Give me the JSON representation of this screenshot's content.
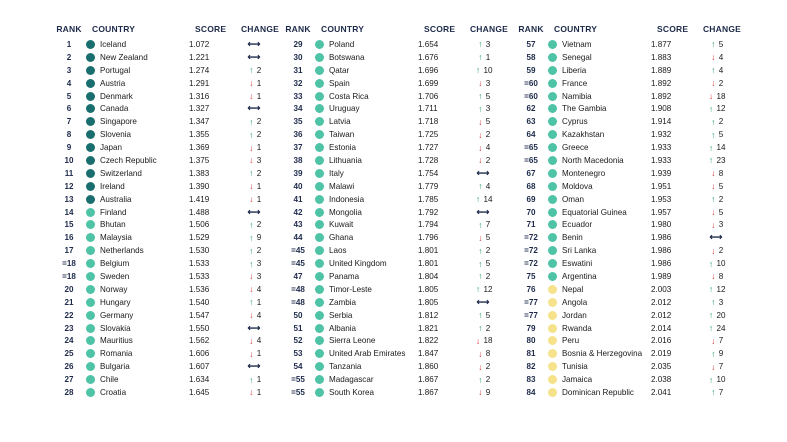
{
  "headers": {
    "rank": "RANK",
    "country": "COUNTRY",
    "score": "SCORE",
    "change": "CHANGE"
  },
  "colors": {
    "dark_teal": "#1a6e70",
    "mid_teal": "#4ec3a6",
    "light_yellow": "#f6e28a",
    "up": "#1c9a5a",
    "down": "#d6262b",
    "same": "#1d2a4a"
  },
  "rows": [
    {
      "rank": "1",
      "country": "Iceland",
      "score": "1.072",
      "dir": "same",
      "change": "",
      "dot": "dark"
    },
    {
      "rank": "2",
      "country": "New Zealand",
      "score": "1.221",
      "dir": "same",
      "change": "",
      "dot": "dark"
    },
    {
      "rank": "3",
      "country": "Portugal",
      "score": "1.274",
      "dir": "up",
      "change": "2",
      "dot": "dark"
    },
    {
      "rank": "4",
      "country": "Austria",
      "score": "1.291",
      "dir": "down",
      "change": "1",
      "dot": "dark"
    },
    {
      "rank": "5",
      "country": "Denmark",
      "score": "1.316",
      "dir": "down",
      "change": "1",
      "dot": "dark"
    },
    {
      "rank": "6",
      "country": "Canada",
      "score": "1.327",
      "dir": "same",
      "change": "",
      "dot": "dark"
    },
    {
      "rank": "7",
      "country": "Singapore",
      "score": "1.347",
      "dir": "up",
      "change": "2",
      "dot": "dark"
    },
    {
      "rank": "8",
      "country": "Slovenia",
      "score": "1.355",
      "dir": "up",
      "change": "2",
      "dot": "dark"
    },
    {
      "rank": "9",
      "country": "Japan",
      "score": "1.369",
      "dir": "down",
      "change": "1",
      "dot": "dark"
    },
    {
      "rank": "10",
      "country": "Czech Republic",
      "score": "1.375",
      "dir": "down",
      "change": "3",
      "dot": "dark"
    },
    {
      "rank": "11",
      "country": "Switzerland",
      "score": "1.383",
      "dir": "up",
      "change": "2",
      "dot": "dark"
    },
    {
      "rank": "12",
      "country": "Ireland",
      "score": "1.390",
      "dir": "down",
      "change": "1",
      "dot": "dark"
    },
    {
      "rank": "13",
      "country": "Australia",
      "score": "1.419",
      "dir": "down",
      "change": "1",
      "dot": "dark"
    },
    {
      "rank": "14",
      "country": "Finland",
      "score": "1.488",
      "dir": "same",
      "change": "",
      "dot": "mid"
    },
    {
      "rank": "15",
      "country": "Bhutan",
      "score": "1.506",
      "dir": "up",
      "change": "2",
      "dot": "mid"
    },
    {
      "rank": "16",
      "country": "Malaysia",
      "score": "1.529",
      "dir": "up",
      "change": "9",
      "dot": "mid"
    },
    {
      "rank": "17",
      "country": "Netherlands",
      "score": "1.530",
      "dir": "up",
      "change": "2",
      "dot": "mid"
    },
    {
      "rank": "=18",
      "country": "Belgium",
      "score": "1.533",
      "dir": "up",
      "change": "3",
      "dot": "mid"
    },
    {
      "rank": "=18",
      "country": "Sweden",
      "score": "1.533",
      "dir": "down",
      "change": "3",
      "dot": "mid"
    },
    {
      "rank": "20",
      "country": "Norway",
      "score": "1.536",
      "dir": "down",
      "change": "4",
      "dot": "mid"
    },
    {
      "rank": "21",
      "country": "Hungary",
      "score": "1.540",
      "dir": "up",
      "change": "1",
      "dot": "mid"
    },
    {
      "rank": "22",
      "country": "Germany",
      "score": "1.547",
      "dir": "down",
      "change": "4",
      "dot": "mid"
    },
    {
      "rank": "23",
      "country": "Slovakia",
      "score": "1.550",
      "dir": "same",
      "change": "",
      "dot": "mid"
    },
    {
      "rank": "24",
      "country": "Mauritius",
      "score": "1.562",
      "dir": "down",
      "change": "4",
      "dot": "mid"
    },
    {
      "rank": "25",
      "country": "Romania",
      "score": "1.606",
      "dir": "down",
      "change": "1",
      "dot": "mid"
    },
    {
      "rank": "26",
      "country": "Bulgaria",
      "score": "1.607",
      "dir": "same",
      "change": "",
      "dot": "mid"
    },
    {
      "rank": "27",
      "country": "Chile",
      "score": "1.634",
      "dir": "up",
      "change": "1",
      "dot": "mid"
    },
    {
      "rank": "28",
      "country": "Croatia",
      "score": "1.645",
      "dir": "down",
      "change": "1",
      "dot": "mid"
    },
    {
      "rank": "29",
      "country": "Poland",
      "score": "1.654",
      "dir": "up",
      "change": "3",
      "dot": "mid"
    },
    {
      "rank": "30",
      "country": "Botswana",
      "score": "1.676",
      "dir": "up",
      "change": "1",
      "dot": "mid"
    },
    {
      "rank": "31",
      "country": "Qatar",
      "score": "1.696",
      "dir": "up",
      "change": "10",
      "dot": "mid"
    },
    {
      "rank": "32",
      "country": "Spain",
      "score": "1.699",
      "dir": "down",
      "change": "3",
      "dot": "mid"
    },
    {
      "rank": "33",
      "country": "Costa Rica",
      "score": "1.706",
      "dir": "up",
      "change": "5",
      "dot": "mid"
    },
    {
      "rank": "34",
      "country": "Uruguay",
      "score": "1.711",
      "dir": "up",
      "change": "3",
      "dot": "mid"
    },
    {
      "rank": "35",
      "country": "Latvia",
      "score": "1.718",
      "dir": "down",
      "change": "5",
      "dot": "mid"
    },
    {
      "rank": "36",
      "country": "Taiwan",
      "score": "1.725",
      "dir": "down",
      "change": "2",
      "dot": "mid"
    },
    {
      "rank": "37",
      "country": "Estonia",
      "score": "1.727",
      "dir": "down",
      "change": "4",
      "dot": "mid"
    },
    {
      "rank": "38",
      "country": "Lithuania",
      "score": "1.728",
      "dir": "down",
      "change": "2",
      "dot": "mid"
    },
    {
      "rank": "39",
      "country": "Italy",
      "score": "1.754",
      "dir": "same",
      "change": "",
      "dot": "mid"
    },
    {
      "rank": "40",
      "country": "Malawi",
      "score": "1.779",
      "dir": "up",
      "change": "4",
      "dot": "mid"
    },
    {
      "rank": "41",
      "country": "Indonesia",
      "score": "1.785",
      "dir": "up",
      "change": "14",
      "dot": "mid"
    },
    {
      "rank": "42",
      "country": "Mongolia",
      "score": "1.792",
      "dir": "same",
      "change": "",
      "dot": "mid"
    },
    {
      "rank": "43",
      "country": "Kuwait",
      "score": "1.794",
      "dir": "up",
      "change": "7",
      "dot": "mid"
    },
    {
      "rank": "44",
      "country": "Ghana",
      "score": "1.796",
      "dir": "down",
      "change": "5",
      "dot": "mid"
    },
    {
      "rank": "=45",
      "country": "Laos",
      "score": "1.801",
      "dir": "up",
      "change": "2",
      "dot": "mid"
    },
    {
      "rank": "=45",
      "country": "United Kingdom",
      "score": "1.801",
      "dir": "up",
      "change": "5",
      "dot": "mid"
    },
    {
      "rank": "47",
      "country": "Panama",
      "score": "1.804",
      "dir": "up",
      "change": "2",
      "dot": "mid"
    },
    {
      "rank": "=48",
      "country": "Timor-Leste",
      "score": "1.805",
      "dir": "up",
      "change": "12",
      "dot": "mid"
    },
    {
      "rank": "=48",
      "country": "Zambia",
      "score": "1.805",
      "dir": "same",
      "change": "",
      "dot": "mid"
    },
    {
      "rank": "50",
      "country": "Serbia",
      "score": "1.812",
      "dir": "up",
      "change": "5",
      "dot": "mid"
    },
    {
      "rank": "51",
      "country": "Albania",
      "score": "1.821",
      "dir": "up",
      "change": "2",
      "dot": "mid"
    },
    {
      "rank": "52",
      "country": "Sierra Leone",
      "score": "1.822",
      "dir": "down",
      "change": "18",
      "dot": "mid"
    },
    {
      "rank": "53",
      "country": "United Arab Emirates",
      "score": "1.847",
      "dir": "down",
      "change": "8",
      "dot": "mid"
    },
    {
      "rank": "54",
      "country": "Tanzania",
      "score": "1.860",
      "dir": "down",
      "change": "2",
      "dot": "mid"
    },
    {
      "rank": "=55",
      "country": "Madagascar",
      "score": "1.867",
      "dir": "up",
      "change": "2",
      "dot": "mid"
    },
    {
      "rank": "=55",
      "country": "South Korea",
      "score": "1.867",
      "dir": "down",
      "change": "9",
      "dot": "mid"
    },
    {
      "rank": "57",
      "country": "Vietnam",
      "score": "1.877",
      "dir": "up",
      "change": "5",
      "dot": "mid"
    },
    {
      "rank": "58",
      "country": "Senegal",
      "score": "1.883",
      "dir": "down",
      "change": "4",
      "dot": "mid"
    },
    {
      "rank": "59",
      "country": "Liberia",
      "score": "1.889",
      "dir": "up",
      "change": "4",
      "dot": "mid"
    },
    {
      "rank": "=60",
      "country": "France",
      "score": "1.892",
      "dir": "down",
      "change": "2",
      "dot": "mid"
    },
    {
      "rank": "=60",
      "country": "Namibia",
      "score": "1.892",
      "dir": "down",
      "change": "18",
      "dot": "mid"
    },
    {
      "rank": "62",
      "country": "The Gambia",
      "score": "1.908",
      "dir": "up",
      "change": "12",
      "dot": "mid"
    },
    {
      "rank": "63",
      "country": "Cyprus",
      "score": "1.914",
      "dir": "up",
      "change": "2",
      "dot": "mid"
    },
    {
      "rank": "64",
      "country": "Kazakhstan",
      "score": "1.932",
      "dir": "up",
      "change": "5",
      "dot": "mid"
    },
    {
      "rank": "=65",
      "country": "Greece",
      "score": "1.933",
      "dir": "up",
      "change": "14",
      "dot": "mid"
    },
    {
      "rank": "=65",
      "country": "North Macedonia",
      "score": "1.933",
      "dir": "up",
      "change": "23",
      "dot": "mid"
    },
    {
      "rank": "67",
      "country": "Montenegro",
      "score": "1.939",
      "dir": "down",
      "change": "8",
      "dot": "mid"
    },
    {
      "rank": "68",
      "country": "Moldova",
      "score": "1.951",
      "dir": "down",
      "change": "5",
      "dot": "mid"
    },
    {
      "rank": "69",
      "country": "Oman",
      "score": "1.953",
      "dir": "up",
      "change": "2",
      "dot": "mid"
    },
    {
      "rank": "70",
      "country": "Equatorial Guinea",
      "score": "1.957",
      "dir": "down",
      "change": "5",
      "dot": "mid"
    },
    {
      "rank": "71",
      "country": "Ecuador",
      "score": "1.980",
      "dir": "down",
      "change": "3",
      "dot": "mid"
    },
    {
      "rank": "=72",
      "country": "Benin",
      "score": "1.986",
      "dir": "same",
      "change": "",
      "dot": "mid"
    },
    {
      "rank": "=72",
      "country": "Sri Lanka",
      "score": "1.986",
      "dir": "down",
      "change": "2",
      "dot": "mid"
    },
    {
      "rank": "=72",
      "country": "Eswatini",
      "score": "1.986",
      "dir": "up",
      "change": "10",
      "dot": "mid"
    },
    {
      "rank": "75",
      "country": "Argentina",
      "score": "1.989",
      "dir": "down",
      "change": "8",
      "dot": "mid"
    },
    {
      "rank": "76",
      "country": "Nepal",
      "score": "2.003",
      "dir": "up",
      "change": "12",
      "dot": "yellow"
    },
    {
      "rank": "=77",
      "country": "Angola",
      "score": "2.012",
      "dir": "up",
      "change": "3",
      "dot": "yellow"
    },
    {
      "rank": "=77",
      "country": "Jordan",
      "score": "2.012",
      "dir": "up",
      "change": "20",
      "dot": "yellow"
    },
    {
      "rank": "79",
      "country": "Rwanda",
      "score": "2.014",
      "dir": "up",
      "change": "24",
      "dot": "yellow"
    },
    {
      "rank": "80",
      "country": "Peru",
      "score": "2.016",
      "dir": "down",
      "change": "7",
      "dot": "yellow"
    },
    {
      "rank": "81",
      "country": "Bosnia & Herzegovina",
      "score": "2.019",
      "dir": "up",
      "change": "9",
      "dot": "yellow"
    },
    {
      "rank": "82",
      "country": "Tunisia",
      "score": "2.035",
      "dir": "down",
      "change": "7",
      "dot": "yellow"
    },
    {
      "rank": "83",
      "country": "Jamaica",
      "score": "2.038",
      "dir": "up",
      "change": "10",
      "dot": "yellow"
    },
    {
      "rank": "84",
      "country": "Dominican Republic",
      "score": "2.041",
      "dir": "up",
      "change": "7",
      "dot": "yellow"
    }
  ]
}
